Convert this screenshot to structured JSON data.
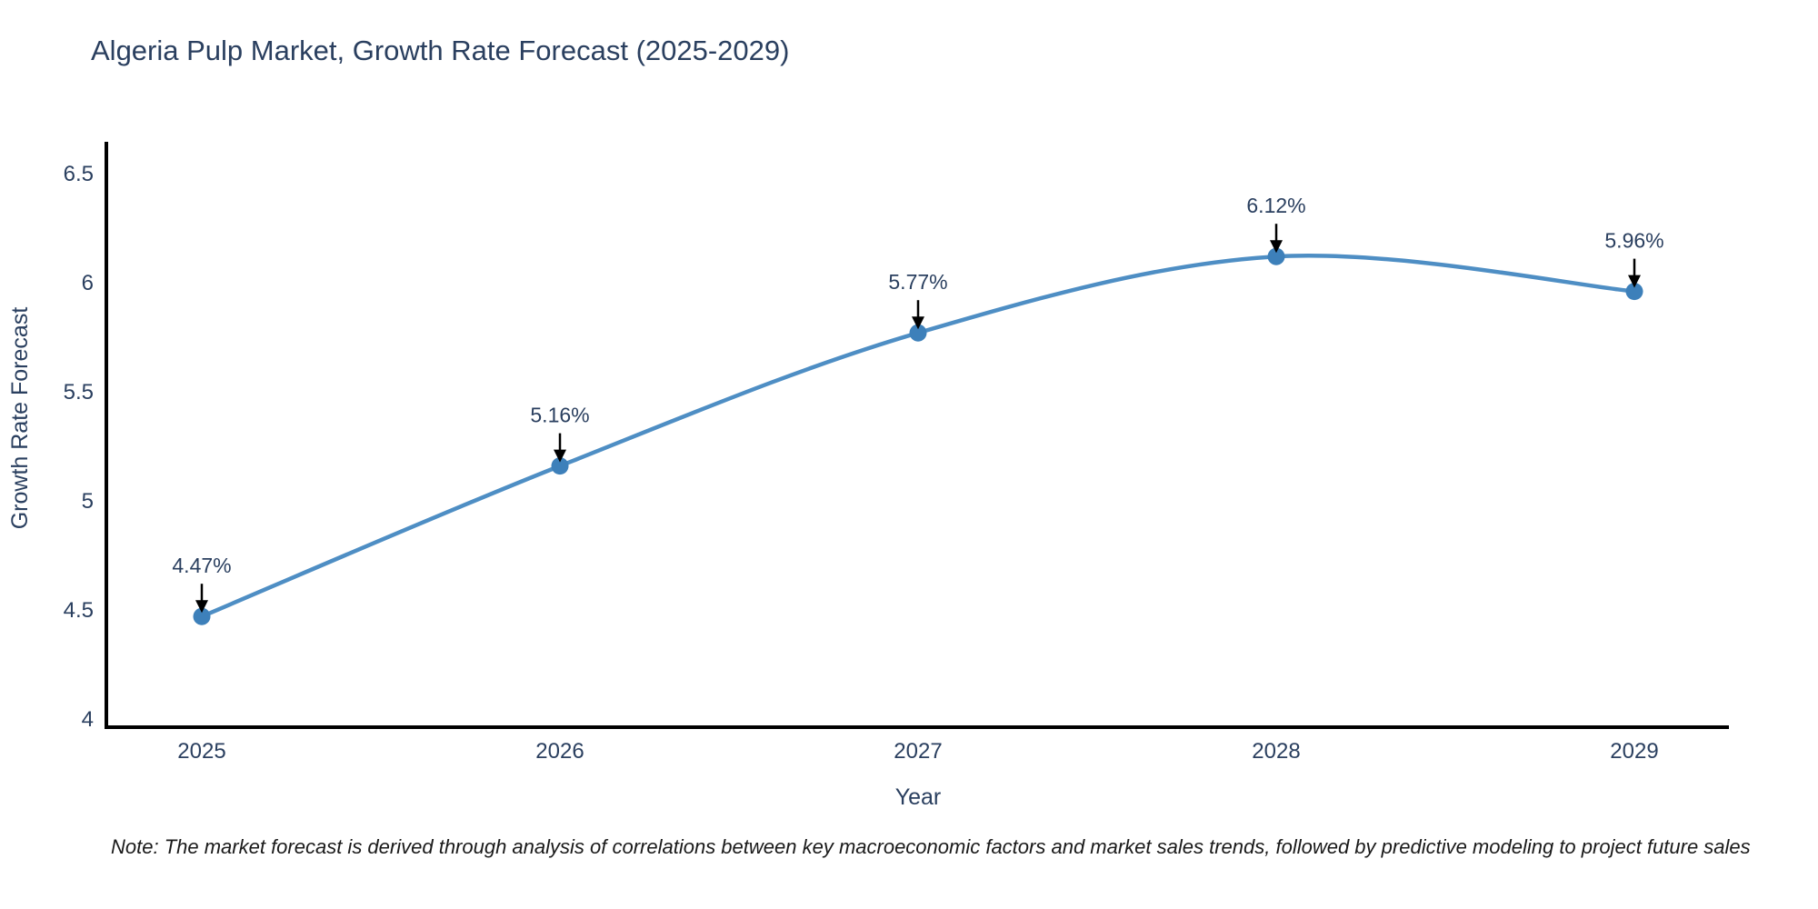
{
  "title": "Algeria Pulp Market, Growth Rate Forecast (2025-2029)",
  "note": "Note: The market forecast is derived through analysis of correlations between key macroeconomic factors and market sales trends, followed by predictive modeling to project future sales",
  "colors": {
    "line": "#4e8ec4",
    "marker": "#3d80ba",
    "axis": "#000000",
    "text": "#2a3f5f",
    "annotation_arrow": "#000000",
    "note_text": "#1a1a1a",
    "background": "#ffffff"
  },
  "chart_data": {
    "type": "line",
    "title": "Algeria Pulp Market, Growth Rate Forecast (2025-2029)",
    "x": [
      2025,
      2026,
      2027,
      2028,
      2029
    ],
    "xtick_labels": [
      "2025",
      "2026",
      "2027",
      "2028",
      "2029"
    ],
    "series": [
      {
        "name": "Growth Rate Forecast",
        "values": [
          4.47,
          5.16,
          5.77,
          6.12,
          5.96
        ]
      }
    ],
    "point_labels": [
      "4.47%",
      "5.16%",
      "5.77%",
      "6.12%",
      "5.96%"
    ],
    "xlabel": "Year",
    "ylabel": "Growth Rate Forecast",
    "ylim": [
      4,
      6.5
    ],
    "yticks": [
      4,
      4.5,
      5,
      5.5,
      6,
      6.5
    ],
    "ytick_labels": [
      "4",
      "4.5",
      "5",
      "5.5",
      "6",
      "6.5"
    ],
    "grid": false,
    "legend_position": "none",
    "line_shape": "spline",
    "markers": true,
    "annotations_with_arrows": true
  }
}
